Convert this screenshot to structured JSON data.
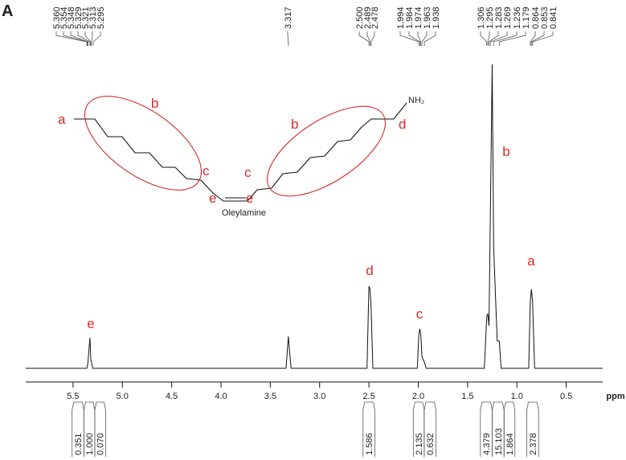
{
  "panel_label": "A",
  "chart_data": {
    "type": "line",
    "color": "#111111",
    "x_label": "ppm",
    "xlim": [
      5.98,
      0.13
    ],
    "ylim": [
      0,
      100
    ],
    "xticks": [
      5.5,
      {
        "value": 5,
        "label": "5.0"
      },
      4.5,
      {
        "value": 4,
        "label": "4.0"
      },
      3.5,
      {
        "value": 3,
        "label": "3.0"
      },
      2.5,
      {
        "value": 2,
        "label": "2.0"
      },
      1.5,
      {
        "value": 1,
        "label": "1.0"
      },
      0.5
    ],
    "x": [
      5.98,
      5.36,
      5.35,
      5.329,
      5.32,
      5.3,
      3.34,
      3.317,
      3.29,
      2.52,
      2.5,
      2.489,
      2.478,
      2.46,
      2.01,
      1.994,
      1.984,
      1.974,
      1.963,
      1.938,
      1.92,
      1.33,
      1.306,
      1.295,
      1.283,
      1.25,
      1.236,
      1.2,
      1.179,
      1.16,
      0.88,
      0.864,
      0.853,
      0.841,
      0.82,
      0.13
    ],
    "values": [
      0,
      0,
      1.5,
      10,
      3,
      0,
      0,
      10.5,
      0,
      0,
      27,
      26,
      20,
      0,
      0,
      11,
      13,
      11,
      4,
      2,
      0,
      0,
      17,
      18,
      14,
      100,
      40,
      9,
      9,
      0,
      0,
      22,
      26,
      22,
      0,
      0
    ],
    "peak_labels": [
      {
        "value": 5.36,
        "label": "5.360"
      },
      {
        "value": 5.354,
        "label": "5.354"
      },
      {
        "value": 5.348,
        "label": "5.348"
      },
      {
        "value": 5.329,
        "label": "5.329"
      },
      {
        "value": 5.321,
        "label": "5.321"
      },
      {
        "value": 5.313,
        "label": "5.313"
      },
      {
        "value": 5.295,
        "label": "5.295"
      },
      {
        "value": 3.317,
        "label": "3.317"
      },
      {
        "value": 2.5,
        "label": "2.500"
      },
      {
        "value": 2.489,
        "label": "2.489"
      },
      {
        "value": 2.478,
        "label": "2.478"
      },
      {
        "value": 1.994,
        "label": "1.994"
      },
      {
        "value": 1.984,
        "label": "1.984"
      },
      {
        "value": 1.974,
        "label": "1.974"
      },
      {
        "value": 1.963,
        "label": "1.963"
      },
      {
        "value": 1.938,
        "label": "1.938"
      },
      {
        "value": 1.306,
        "label": "1.306"
      },
      {
        "value": 1.295,
        "label": "1.295"
      },
      {
        "value": 1.283,
        "label": "1.283"
      },
      {
        "value": 1.269,
        "label": "1.269"
      },
      {
        "value": 1.236,
        "label": "1.236"
      },
      {
        "value": 1.179,
        "label": "1.179"
      },
      {
        "value": 0.864,
        "label": "0.864"
      },
      {
        "value": 0.853,
        "label": "0.853"
      },
      {
        "value": 0.841,
        "label": "0.841"
      }
    ],
    "integrals": [
      {
        "value": 0.351,
        "range": [
          5.51,
          5.39
        ]
      },
      {
        "value": 1,
        "label": "1.000",
        "range": [
          5.39,
          5.28
        ]
      },
      {
        "value": 0.07,
        "label": "0.070",
        "range": [
          5.28,
          5.17
        ]
      },
      {
        "value": 1.586,
        "range": [
          2.56,
          2.44
        ]
      },
      {
        "value": 2.135,
        "range": [
          2.05,
          1.94
        ]
      },
      {
        "value": 0.632,
        "range": [
          1.94,
          1.82
        ]
      },
      {
        "value": 4.379,
        "range": [
          1.37,
          1.25
        ]
      },
      {
        "value": 15.103,
        "range": [
          1.25,
          1.13
        ]
      },
      {
        "value": 1.864,
        "range": [
          1.13,
          1.02
        ]
      },
      {
        "value": 2.378,
        "range": [
          0.9,
          0.78
        ]
      }
    ],
    "annotations": [
      "e",
      "d",
      "c",
      "b",
      "a"
    ]
  },
  "structure": {
    "name": "Oleylamine",
    "amine": "NH₂",
    "labels": [
      "a",
      "b",
      "c",
      "e",
      "e",
      "c",
      "b",
      "d"
    ]
  }
}
